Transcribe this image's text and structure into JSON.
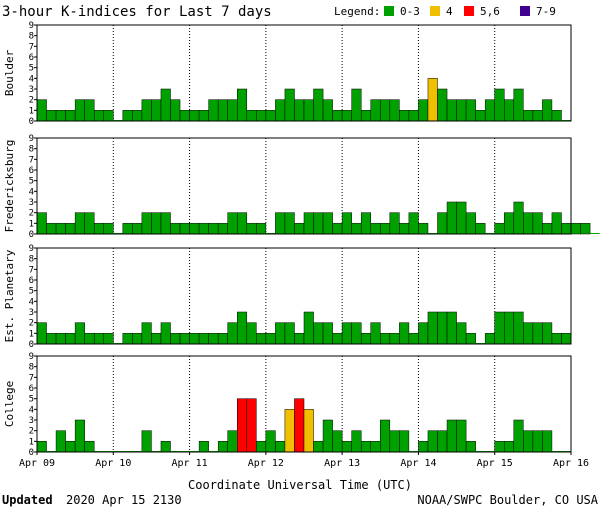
{
  "title": "3-hour K-indices for Last 7 days",
  "legend": {
    "label": "Legend:",
    "items": [
      {
        "label": "0-3",
        "color": "#00a000"
      },
      {
        "label": "4",
        "color": "#f0c000"
      },
      {
        "label": "5,6",
        "color": "#ff0000"
      },
      {
        "label": "7-9",
        "color": "#400090"
      }
    ]
  },
  "footer": {
    "updated_label": "Updated",
    "updated_value": "2020 Apr 15 2130",
    "credit": "NOAA/SWPC Boulder, CO USA"
  },
  "chart_data": {
    "type": "bar",
    "xlabel": "Coordinate Universal Time (UTC)",
    "x_tick_labels": [
      "Apr 09",
      "Apr 10",
      "Apr 11",
      "Apr 12",
      "Apr 13",
      "Apr 14",
      "Apr 15",
      "Apr 16"
    ],
    "y_tick_labels": [
      "0",
      "1",
      "2",
      "3",
      "4",
      "5",
      "6",
      "7",
      "8",
      "9"
    ],
    "ylim": [
      0,
      9
    ],
    "bins_per_day": 8,
    "color_thresholds": [
      {
        "max": 3,
        "color": "#00a000"
      },
      {
        "max": 4,
        "color": "#f0c000"
      },
      {
        "max": 6,
        "color": "#ff0000"
      },
      {
        "max": 9,
        "color": "#400090"
      }
    ],
    "series": [
      {
        "name": "Boulder",
        "values": [
          2,
          1,
          1,
          1,
          2,
          2,
          1,
          1,
          0,
          1,
          1,
          2,
          2,
          3,
          2,
          1,
          1,
          1,
          2,
          2,
          2,
          3,
          1,
          1,
          1,
          2,
          3,
          2,
          2,
          3,
          2,
          1,
          1,
          3,
          1,
          2,
          2,
          2,
          1,
          1,
          2,
          4,
          3,
          2,
          2,
          2,
          1,
          2,
          3,
          2,
          3,
          1,
          1,
          2,
          1,
          0
        ]
      },
      {
        "name": "Fredericksburg",
        "values": [
          2,
          1,
          1,
          1,
          2,
          2,
          1,
          1,
          0,
          1,
          1,
          2,
          2,
          2,
          1,
          1,
          1,
          1,
          1,
          1,
          2,
          2,
          1,
          1,
          0,
          2,
          2,
          1,
          2,
          2,
          2,
          1,
          2,
          1,
          2,
          1,
          1,
          2,
          1,
          2,
          1,
          0,
          2,
          3,
          3,
          2,
          1,
          0,
          1,
          2,
          3,
          2,
          2,
          1,
          2,
          1,
          1,
          1,
          0
        ]
      },
      {
        "name": "Est. Planetary",
        "values": [
          2,
          1,
          1,
          1,
          2,
          1,
          1,
          1,
          0,
          1,
          1,
          2,
          1,
          2,
          1,
          1,
          1,
          1,
          1,
          1,
          2,
          3,
          2,
          1,
          1,
          2,
          2,
          1,
          3,
          2,
          2,
          1,
          2,
          2,
          1,
          2,
          1,
          1,
          2,
          1,
          2,
          3,
          3,
          3,
          2,
          1,
          0,
          1,
          3,
          3,
          3,
          2,
          2,
          2,
          1,
          1
        ]
      },
      {
        "name": "College",
        "values": [
          1,
          0,
          2,
          1,
          3,
          1,
          0,
          0,
          0,
          0,
          0,
          2,
          0,
          1,
          0,
          0,
          0,
          1,
          0,
          1,
          2,
          5,
          5,
          1,
          2,
          1,
          4,
          5,
          4,
          1,
          3,
          2,
          1,
          2,
          1,
          1,
          3,
          2,
          2,
          0,
          1,
          2,
          2,
          3,
          3,
          1,
          0,
          0,
          1,
          1,
          3,
          2,
          2,
          2,
          0,
          0
        ]
      }
    ]
  }
}
